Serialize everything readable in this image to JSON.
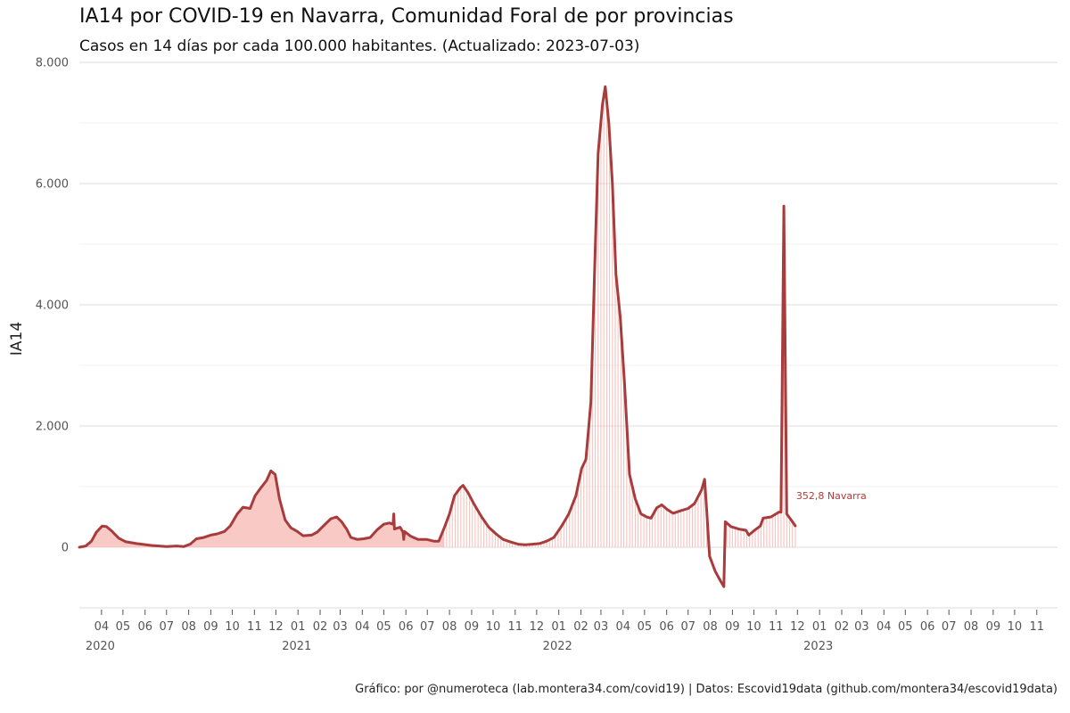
{
  "chart_data": {
    "type": "line",
    "title": "IA14 por COVID-19 en Navarra, Comunidad Foral de por provincias",
    "subtitle": "Casos en 14 días por cada 100.000 habitantes.  (Actualizado: 2023-07-03)",
    "caption": "Gráfico: por @numeroteca (lab.montera34.com/covid19) | Datos: Escovid19data (github.com/montera34/escovid19data)",
    "ylabel": "IA14",
    "xlabel": "",
    "xlim": [
      "2020-03-01",
      "2023-11-30"
    ],
    "ylim": [
      -1000,
      8000
    ],
    "y_ticks": [
      0,
      2000,
      4000,
      6000,
      8000
    ],
    "y_tick_labels": [
      "0",
      "2.000",
      "4.000",
      "6.000",
      "8.000"
    ],
    "x_tick_labels": [
      "04",
      "05",
      "06",
      "07",
      "08",
      "09",
      "10",
      "11",
      "12",
      "01",
      "02",
      "03",
      "04",
      "05",
      "06",
      "07",
      "08",
      "09",
      "10",
      "11",
      "12",
      "01",
      "02",
      "03",
      "04",
      "05",
      "06",
      "07",
      "08",
      "09",
      "10",
      "11",
      "12",
      "01",
      "02",
      "03",
      "04",
      "05",
      "06",
      "07",
      "08",
      "09",
      "10",
      "11"
    ],
    "year_labels": [
      "2020",
      "2021",
      "2022",
      "2023"
    ],
    "grid": true,
    "colors": {
      "line": "#a83c3c",
      "fill": "#f7b7b2",
      "end_label": "#b53a3a"
    },
    "series": [
      {
        "name": "Navarra",
        "end_label": "352,8  Navarra",
        "points": [
          [
            "2020-03-01",
            0
          ],
          [
            "2020-03-10",
            20
          ],
          [
            "2020-03-18",
            100
          ],
          [
            "2020-03-25",
            250
          ],
          [
            "2020-04-02",
            350
          ],
          [
            "2020-04-08",
            340
          ],
          [
            "2020-04-15",
            270
          ],
          [
            "2020-04-25",
            150
          ],
          [
            "2020-05-05",
            90
          ],
          [
            "2020-05-20",
            60
          ],
          [
            "2020-06-10",
            30
          ],
          [
            "2020-07-01",
            10
          ],
          [
            "2020-07-15",
            20
          ],
          [
            "2020-07-25",
            10
          ],
          [
            "2020-08-03",
            50
          ],
          [
            "2020-08-12",
            140
          ],
          [
            "2020-08-22",
            160
          ],
          [
            "2020-09-01",
            200
          ],
          [
            "2020-09-10",
            220
          ],
          [
            "2020-09-20",
            260
          ],
          [
            "2020-09-28",
            350
          ],
          [
            "2020-10-08",
            550
          ],
          [
            "2020-10-16",
            660
          ],
          [
            "2020-10-26",
            640
          ],
          [
            "2020-11-02",
            850
          ],
          [
            "2020-11-10",
            980
          ],
          [
            "2020-11-18",
            1100
          ],
          [
            "2020-11-24",
            1260
          ],
          [
            "2020-11-30",
            1200
          ],
          [
            "2020-12-06",
            800
          ],
          [
            "2020-12-14",
            450
          ],
          [
            "2020-12-22",
            320
          ],
          [
            "2020-12-31",
            260
          ],
          [
            "2021-01-08",
            190
          ],
          [
            "2021-01-20",
            200
          ],
          [
            "2021-01-28",
            250
          ],
          [
            "2021-02-08",
            380
          ],
          [
            "2021-02-16",
            470
          ],
          [
            "2021-02-24",
            500
          ],
          [
            "2021-03-03",
            420
          ],
          [
            "2021-03-10",
            300
          ],
          [
            "2021-03-16",
            160
          ],
          [
            "2021-03-25",
            130
          ],
          [
            "2021-04-03",
            140
          ],
          [
            "2021-04-12",
            160
          ],
          [
            "2021-04-22",
            290
          ],
          [
            "2021-05-01",
            380
          ],
          [
            "2021-05-09",
            400
          ],
          [
            "2021-05-14",
            380
          ],
          [
            "2021-05-15",
            550
          ],
          [
            "2021-05-16",
            300
          ],
          [
            "2021-05-24",
            330
          ],
          [
            "2021-05-28",
            250
          ],
          [
            "2021-05-29",
            130
          ],
          [
            "2021-05-30",
            260
          ],
          [
            "2021-06-08",
            180
          ],
          [
            "2021-06-18",
            130
          ],
          [
            "2021-06-30",
            130
          ],
          [
            "2021-07-10",
            100
          ],
          [
            "2021-07-17",
            100
          ],
          [
            "2021-07-24",
            300
          ],
          [
            "2021-08-01",
            550
          ],
          [
            "2021-08-08",
            850
          ],
          [
            "2021-08-16",
            980
          ],
          [
            "2021-08-20",
            1020
          ],
          [
            "2021-08-27",
            900
          ],
          [
            "2021-09-05",
            700
          ],
          [
            "2021-09-15",
            500
          ],
          [
            "2021-09-25",
            330
          ],
          [
            "2021-10-05",
            220
          ],
          [
            "2021-10-15",
            130
          ],
          [
            "2021-10-25",
            90
          ],
          [
            "2021-11-05",
            50
          ],
          [
            "2021-11-15",
            40
          ],
          [
            "2021-11-25",
            50
          ],
          [
            "2021-12-05",
            60
          ],
          [
            "2021-12-15",
            100
          ],
          [
            "2021-12-25",
            160
          ],
          [
            "2022-01-05",
            350
          ],
          [
            "2022-01-15",
            550
          ],
          [
            "2022-01-25",
            850
          ],
          [
            "2022-02-02",
            1300
          ],
          [
            "2022-02-08",
            1450
          ],
          [
            "2022-02-15",
            2400
          ],
          [
            "2022-02-20",
            4500
          ],
          [
            "2022-02-25",
            6500
          ],
          [
            "2022-03-03",
            7300
          ],
          [
            "2022-03-07",
            7600
          ],
          [
            "2022-03-12",
            7000
          ],
          [
            "2022-03-17",
            6000
          ],
          [
            "2022-03-22",
            4500
          ],
          [
            "2022-03-28",
            3800
          ],
          [
            "2022-04-03",
            2700
          ],
          [
            "2022-04-10",
            1200
          ],
          [
            "2022-04-18",
            800
          ],
          [
            "2022-04-26",
            550
          ],
          [
            "2022-05-04",
            500
          ],
          [
            "2022-05-10",
            480
          ],
          [
            "2022-05-18",
            650
          ],
          [
            "2022-05-25",
            700
          ],
          [
            "2022-06-02",
            620
          ],
          [
            "2022-06-10",
            560
          ],
          [
            "2022-06-20",
            600
          ],
          [
            "2022-07-01",
            640
          ],
          [
            "2022-07-10",
            720
          ],
          [
            "2022-07-20",
            950
          ],
          [
            "2022-07-24",
            1120
          ],
          [
            "2022-07-27",
            600
          ],
          [
            "2022-07-31",
            -150
          ],
          [
            "2022-08-08",
            -400
          ],
          [
            "2022-08-15",
            -550
          ],
          [
            "2022-08-20",
            -650
          ],
          [
            "2022-08-22",
            420
          ],
          [
            "2022-08-30",
            340
          ],
          [
            "2022-09-10",
            300
          ],
          [
            "2022-09-20",
            280
          ],
          [
            "2022-09-24",
            200
          ],
          [
            "2022-10-01",
            270
          ],
          [
            "2022-10-10",
            350
          ],
          [
            "2022-10-14",
            480
          ],
          [
            "2022-10-25",
            500
          ],
          [
            "2022-11-05",
            580
          ],
          [
            "2022-11-08",
            580
          ],
          [
            "2022-11-12",
            5630
          ],
          [
            "2022-11-16",
            550
          ],
          [
            "2022-11-24",
            420
          ],
          [
            "2022-11-28",
            353
          ]
        ]
      }
    ]
  }
}
